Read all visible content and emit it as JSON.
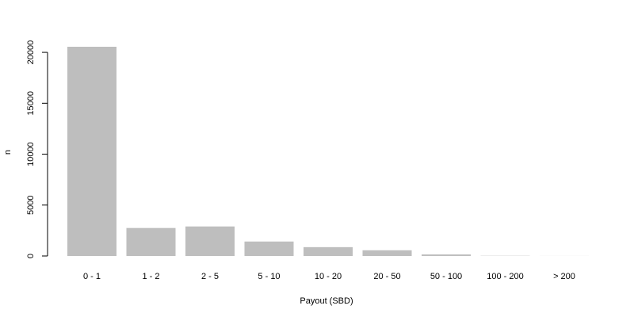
{
  "chart_data": {
    "type": "bar",
    "categories": [
      "0 - 1",
      "1 - 2",
      "2 - 5",
      "5 - 10",
      "10 - 20",
      "20 - 50",
      "50 - 100",
      "100 - 200",
      "> 200"
    ],
    "values": [
      20550,
      2750,
      2900,
      1420,
      870,
      560,
      150,
      20,
      5
    ],
    "xlabel": "Payout (SBD)",
    "ylabel": "n",
    "ylim": [
      0,
      20550
    ],
    "yticks": [
      0,
      5000,
      10000,
      15000,
      20000
    ],
    "yticklabels": [
      "0",
      "5000",
      "10000",
      "15000",
      "20000"
    ],
    "grid": false,
    "bar_color": "#bebebe"
  }
}
